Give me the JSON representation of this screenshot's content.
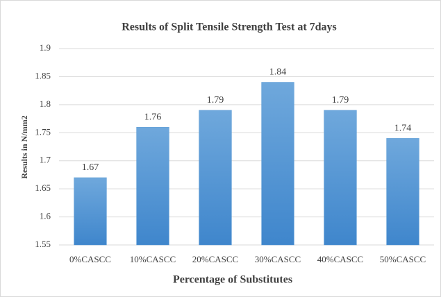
{
  "chart_data": {
    "type": "bar",
    "title": "Results of Split Tensile Strength Test at 7days",
    "x_label": "Percentage of Substitutes",
    "y_label": "Results in N/mm2",
    "categories": [
      "0%CASCC",
      "10%CASCC",
      "20%CASCC",
      "30%CASCC",
      "40%CASCC",
      "50%CASCC"
    ],
    "values": [
      1.67,
      1.76,
      1.79,
      1.84,
      1.79,
      1.74
    ],
    "color": "#5b9bd5",
    "ylim": [
      1.55,
      1.9
    ],
    "yticks": [
      1.55,
      1.6,
      1.65,
      1.7,
      1.75,
      1.8,
      1.85,
      1.9
    ],
    "grid": true
  }
}
